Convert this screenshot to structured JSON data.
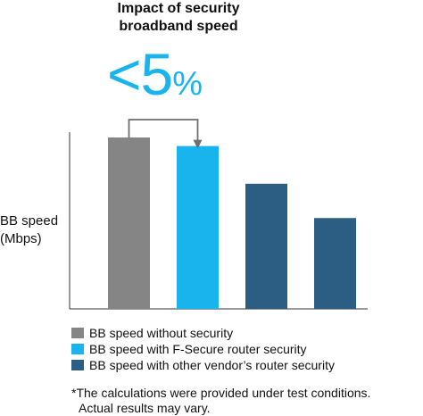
{
  "header": {
    "title_line1": "Impact of security",
    "title_line2": "broadband speed",
    "headline_main": "<5",
    "headline_unit": "%"
  },
  "chart_data": {
    "type": "bar",
    "title": "Impact of security broadband speed",
    "ylabel_line1": "BB speed",
    "ylabel_line2": "(Mbps)",
    "xlabel": "",
    "ylim": [
      0,
      100
    ],
    "categories": [
      "BB speed without security",
      "BB speed with F-Secure router security",
      "BB speed with other vendor's router security",
      "BB speed with other vendor's router security"
    ],
    "values": [
      100,
      95,
      73,
      53
    ],
    "colors": [
      "#858585",
      "#19b4ee",
      "#2c5d82",
      "#2c5d82"
    ],
    "grid": false,
    "annotation": "arrow from bar 1 to bar 2"
  },
  "legend": {
    "items": [
      {
        "label": "BB speed without security",
        "color": "#858585"
      },
      {
        "label": "BB speed with F-Secure router security",
        "color": "#19b4ee"
      },
      {
        "label": "BB speed with other vendor’s router security",
        "color": "#2c5d82"
      }
    ]
  },
  "footnote": {
    "line1": "*The calculations were provided under test conditions.",
    "line2": "Actual results may vary."
  }
}
